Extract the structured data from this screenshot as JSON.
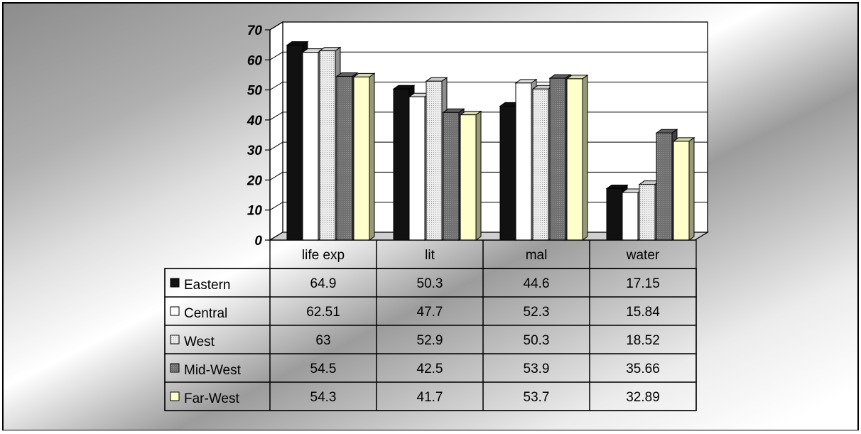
{
  "chart_data": {
    "type": "bar",
    "categories": [
      "life exp",
      "lit",
      "mal",
      "water"
    ],
    "series": [
      {
        "name": "Eastern",
        "values": [
          64.9,
          50.3,
          44.6,
          17.15
        ],
        "color": "#111111"
      },
      {
        "name": "Central",
        "values": [
          62.51,
          47.7,
          52.3,
          15.84
        ],
        "color": "#ffffff"
      },
      {
        "name": "West",
        "values": [
          63,
          52.9,
          50.3,
          18.52
        ],
        "color": "#ececec"
      },
      {
        "name": "Mid-West",
        "values": [
          54.5,
          42.5,
          53.9,
          35.66
        ],
        "color": "#707070"
      },
      {
        "name": "Far-West",
        "values": [
          54.3,
          41.7,
          53.7,
          32.89
        ],
        "color": "#ffffcc"
      }
    ],
    "table_cells": [
      [
        "64.9",
        "50.3",
        "44.6",
        "17.15"
      ],
      [
        "62.51",
        "47.7",
        "52.3",
        "15.84"
      ],
      [
        "63",
        "52.9",
        "50.3",
        "18.52"
      ],
      [
        "54.5",
        "42.5",
        "53.9",
        "35.66"
      ],
      [
        "54.3",
        "41.7",
        "53.7",
        "32.89"
      ]
    ],
    "y_ticks": [
      "0",
      "10",
      "20",
      "30",
      "40",
      "50",
      "60",
      "70"
    ],
    "ylim": [
      0,
      70
    ],
    "grid": true,
    "legend": "data-table",
    "style": "3d-clustered-column"
  }
}
